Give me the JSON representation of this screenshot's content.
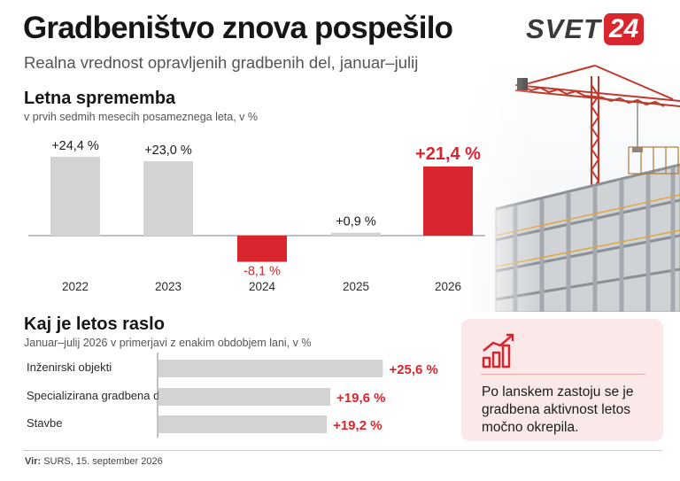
{
  "title": "Gradbeništvo znova pospešilo",
  "subtitle": "Realna vrednost opravljenih gradbenih del, januar–julij",
  "logo": {
    "text": "SVET",
    "number": "24",
    "color": "#d9262e"
  },
  "colors": {
    "neutral_bar": "#d3d3d3",
    "highlight_bar": "#d9262e",
    "negative_bar": "#d9262e"
  },
  "chart_data": [
    {
      "type": "bar",
      "title": "Letna sprememba",
      "subtitle": "v prvih sedmih mesecih posameznega leta, v %",
      "categories": [
        "2022",
        "2023",
        "2024",
        "2025",
        "2026"
      ],
      "values": [
        24.4,
        23.0,
        -8.1,
        0.9,
        21.4
      ],
      "value_labels": [
        "+24,4 %",
        "+23,0 %",
        "-8,1 %",
        "+0,9 %",
        "+21,4 %"
      ],
      "highlight": [
        "2024",
        "2026"
      ],
      "ylim": [
        -10,
        30
      ]
    },
    {
      "type": "bar",
      "orientation": "horizontal",
      "title": "Kaj je letos raslo",
      "subtitle": "Januar–julij 2026 v primerjavi z enakim obdobjem lani, v %",
      "categories": [
        "Inženirski objekti",
        "Specializirana gradbena dela",
        "Stavbe"
      ],
      "values": [
        25.6,
        19.6,
        19.2
      ],
      "value_labels": [
        "+25,6 %",
        "+19,6 %",
        "+19,2 %"
      ],
      "xlim": [
        0,
        30
      ]
    }
  ],
  "callout": {
    "icon": "growth-chart-icon",
    "text": "Po lanskem zastoju se je gradbena aktivnost letos močno okrepila."
  },
  "source": {
    "label": "Vir:",
    "text": "SURS, 15. september 2026"
  }
}
